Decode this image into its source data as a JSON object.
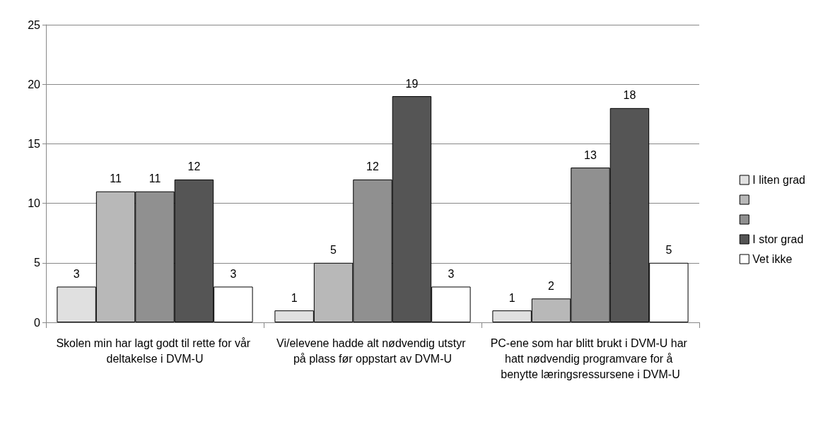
{
  "chart_data": {
    "type": "bar",
    "categories": [
      "Skolen min har lagt godt til rette for vår deltakelse i DVM-U",
      "Vi/elevene hadde alt nødvendig utstyr på plass før oppstart av DVM-U",
      "PC-ene som har blitt brukt i DVM-U har hatt nødvendig programvare for å benytte læringsressursene i DVM-U"
    ],
    "series": [
      {
        "name": "I liten grad",
        "color": "#e0e0e0",
        "values": [
          3,
          1,
          1
        ]
      },
      {
        "color": "#b8b8b8",
        "values": [
          11,
          5,
          2
        ]
      },
      {
        "color": "#909090",
        "values": [
          11,
          12,
          13
        ]
      },
      {
        "name": "I stor grad",
        "color": "#555555",
        "values": [
          12,
          19,
          18
        ]
      },
      {
        "name": "Vet ikke",
        "color": "#ffffff",
        "values": [
          3,
          3,
          5
        ]
      }
    ],
    "ylim": [
      0,
      25
    ],
    "yticks": [
      0,
      5,
      10,
      15,
      20,
      25
    ],
    "grid": "y",
    "legend": "right",
    "data_labels": true
  }
}
